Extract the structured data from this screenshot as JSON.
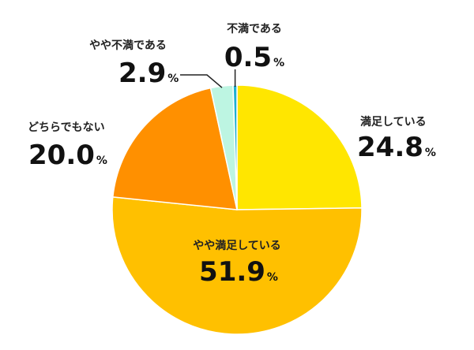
{
  "chart_data": {
    "type": "pie",
    "start_angle_deg": 0,
    "direction": "clockwise",
    "slices": [
      {
        "label": "満足している",
        "value": 24.8,
        "value_text": "24.8",
        "unit": "%",
        "color": "#FFE600"
      },
      {
        "label": "やや満足している",
        "value": 51.9,
        "value_text": "51.9",
        "unit": "%",
        "color": "#FFC000"
      },
      {
        "label": "どちらでもない",
        "value": 20.0,
        "value_text": "20.0",
        "unit": "%",
        "color": "#FF9000"
      },
      {
        "label": "やや不満である",
        "value": 2.9,
        "value_text": "2.9",
        "unit": "%",
        "color": "#BDF5E2"
      },
      {
        "label": "不満である",
        "value": 0.5,
        "value_text": "0.5",
        "unit": "%",
        "color": "#1FB0D0"
      }
    ]
  }
}
